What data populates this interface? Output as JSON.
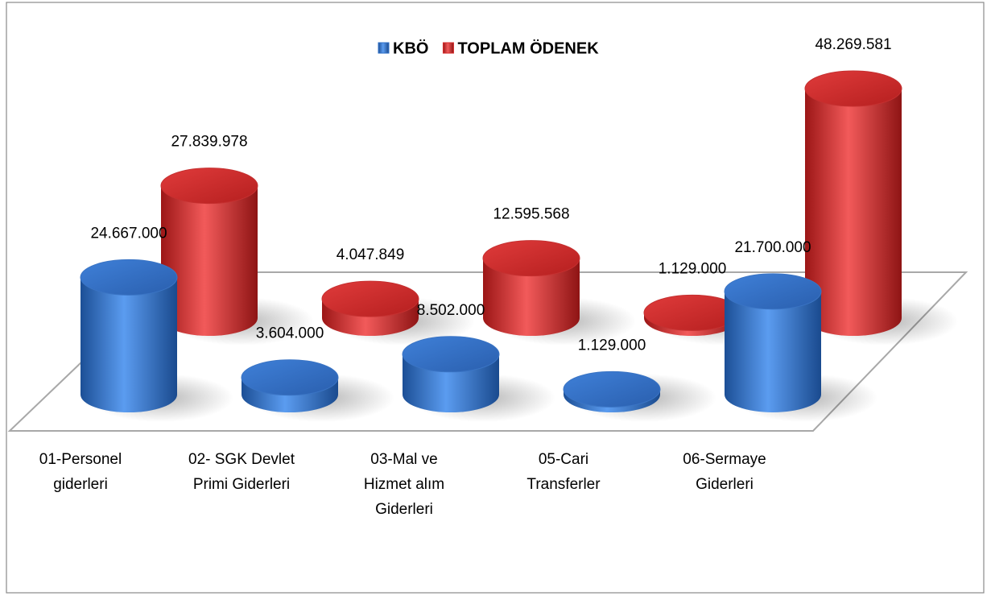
{
  "chart_data": {
    "type": "bar3d",
    "categories": [
      "01-Personel giderleri",
      "02- SGK Devlet Primi Giderleri",
      "03-Mal ve Hizmet alım Giderleri",
      "05-Cari Transferler",
      "06-Sermaye Giderleri"
    ],
    "series": [
      {
        "name": "KBÖ",
        "color": "#2e6fc7",
        "values": [
          24667000,
          3604000,
          8502000,
          1129000,
          21700000
        ],
        "value_labels": [
          "24.667.000",
          "3.604.000",
          "8.502.000",
          "1.129.000",
          "21.700.000"
        ]
      },
      {
        "name": "TOPLAM ÖDENEK",
        "color": "#d62a2a",
        "values": [
          27839978,
          4047849,
          12595568,
          1129000,
          48269581
        ],
        "value_labels": [
          "27.839.978",
          "4.047.849",
          "12.595.568",
          "1.129.000",
          "48.269.581"
        ]
      }
    ],
    "legend": "top"
  }
}
